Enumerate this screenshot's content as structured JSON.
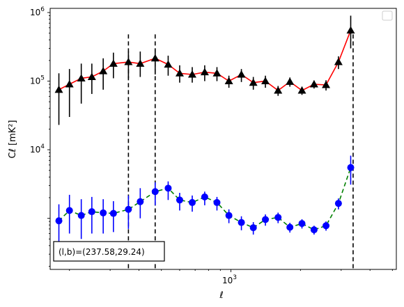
{
  "chart_data": {
    "type": "line",
    "xlabel": "ℓ",
    "ylabel": "Cℓ [mK²]",
    "xscale": "log",
    "yscale": "log",
    "xlim": [
      165,
      5200
    ],
    "ylim": [
      180,
      1150000
    ],
    "x_ticks": [
      {
        "value": 1000,
        "label": "10",
        "sup": "3"
      }
    ],
    "y_ticks": [
      {
        "value": 10000,
        "label": "10",
        "sup": "4"
      },
      {
        "value": 100000,
        "label": "10",
        "sup": "5"
      },
      {
        "value": 1000000,
        "label": "10",
        "sup": "6"
      }
    ],
    "grid": false,
    "legend": {
      "placement": "top-right",
      "entries": []
    },
    "annotation": "(l,b)=(237.58,29.24)",
    "vlines": [
      {
        "x": 360,
        "ymin": 180,
        "ymax": 480000
      },
      {
        "x": 470,
        "ymin": 180,
        "ymax": 480000
      },
      {
        "x": 3380,
        "ymin": 180,
        "ymax": 480000
      }
    ],
    "x": [
      180,
      200,
      225,
      250,
      280,
      310,
      360,
      405,
      470,
      535,
      600,
      680,
      770,
      870,
      980,
      1110,
      1250,
      1410,
      1600,
      1800,
      2030,
      2290,
      2580,
      2920,
      3300,
      3720,
      4200,
      4700
    ],
    "series": [
      {
        "color": "#ff0000",
        "linestyle": "solid",
        "marker": "triangle",
        "marker_color": "#000000",
        "error_color": "#000000",
        "values": [
          75000,
          90000,
          110000,
          115000,
          140000,
          180000,
          190000,
          180000,
          215000,
          175000,
          130000,
          125000,
          135000,
          130000,
          100000,
          125000,
          95000,
          100000,
          73000,
          98000,
          73000,
          90000,
          88000,
          190000,
          550000,
          0,
          0,
          0
        ],
        "err_low": [
          52000,
          60000,
          63000,
          50000,
          65000,
          70000,
          80000,
          65000,
          90000,
          55000,
          35000,
          30000,
          35000,
          30000,
          20000,
          28000,
          20000,
          20000,
          12000,
          15000,
          10000,
          12000,
          15000,
          40000,
          250000,
          0,
          0,
          0
        ],
        "err_high": [
          55000,
          60000,
          70000,
          65000,
          75000,
          80000,
          80000,
          90000,
          85000,
          60000,
          40000,
          35000,
          35000,
          30000,
          20000,
          25000,
          20000,
          20000,
          12000,
          15000,
          10000,
          12000,
          15000,
          40000,
          350000,
          0,
          0,
          0
        ]
      },
      {
        "color": "#008000",
        "linestyle": "dashed",
        "marker": "circle",
        "marker_color": "#0000ff",
        "error_color": "#0000ff",
        "values": [
          920,
          1300,
          1100,
          1250,
          1200,
          1180,
          1350,
          1750,
          2450,
          2750,
          1850,
          1700,
          2050,
          1700,
          1100,
          870,
          730,
          960,
          1030,
          740,
          840,
          680,
          780,
          1650,
          5500,
          0,
          0,
          0
        ],
        "err_low": [
          600,
          700,
          600,
          650,
          600,
          550,
          650,
          750,
          900,
          900,
          550,
          450,
          500,
          400,
          250,
          200,
          150,
          180,
          180,
          120,
          130,
          100,
          120,
          300,
          2400,
          0,
          0,
          0
        ],
        "err_high": [
          680,
          900,
          800,
          800,
          700,
          600,
          800,
          1000,
          900,
          700,
          500,
          450,
          400,
          350,
          250,
          200,
          150,
          180,
          180,
          120,
          130,
          100,
          120,
          300,
          2700,
          0,
          0,
          0
        ]
      }
    ]
  }
}
